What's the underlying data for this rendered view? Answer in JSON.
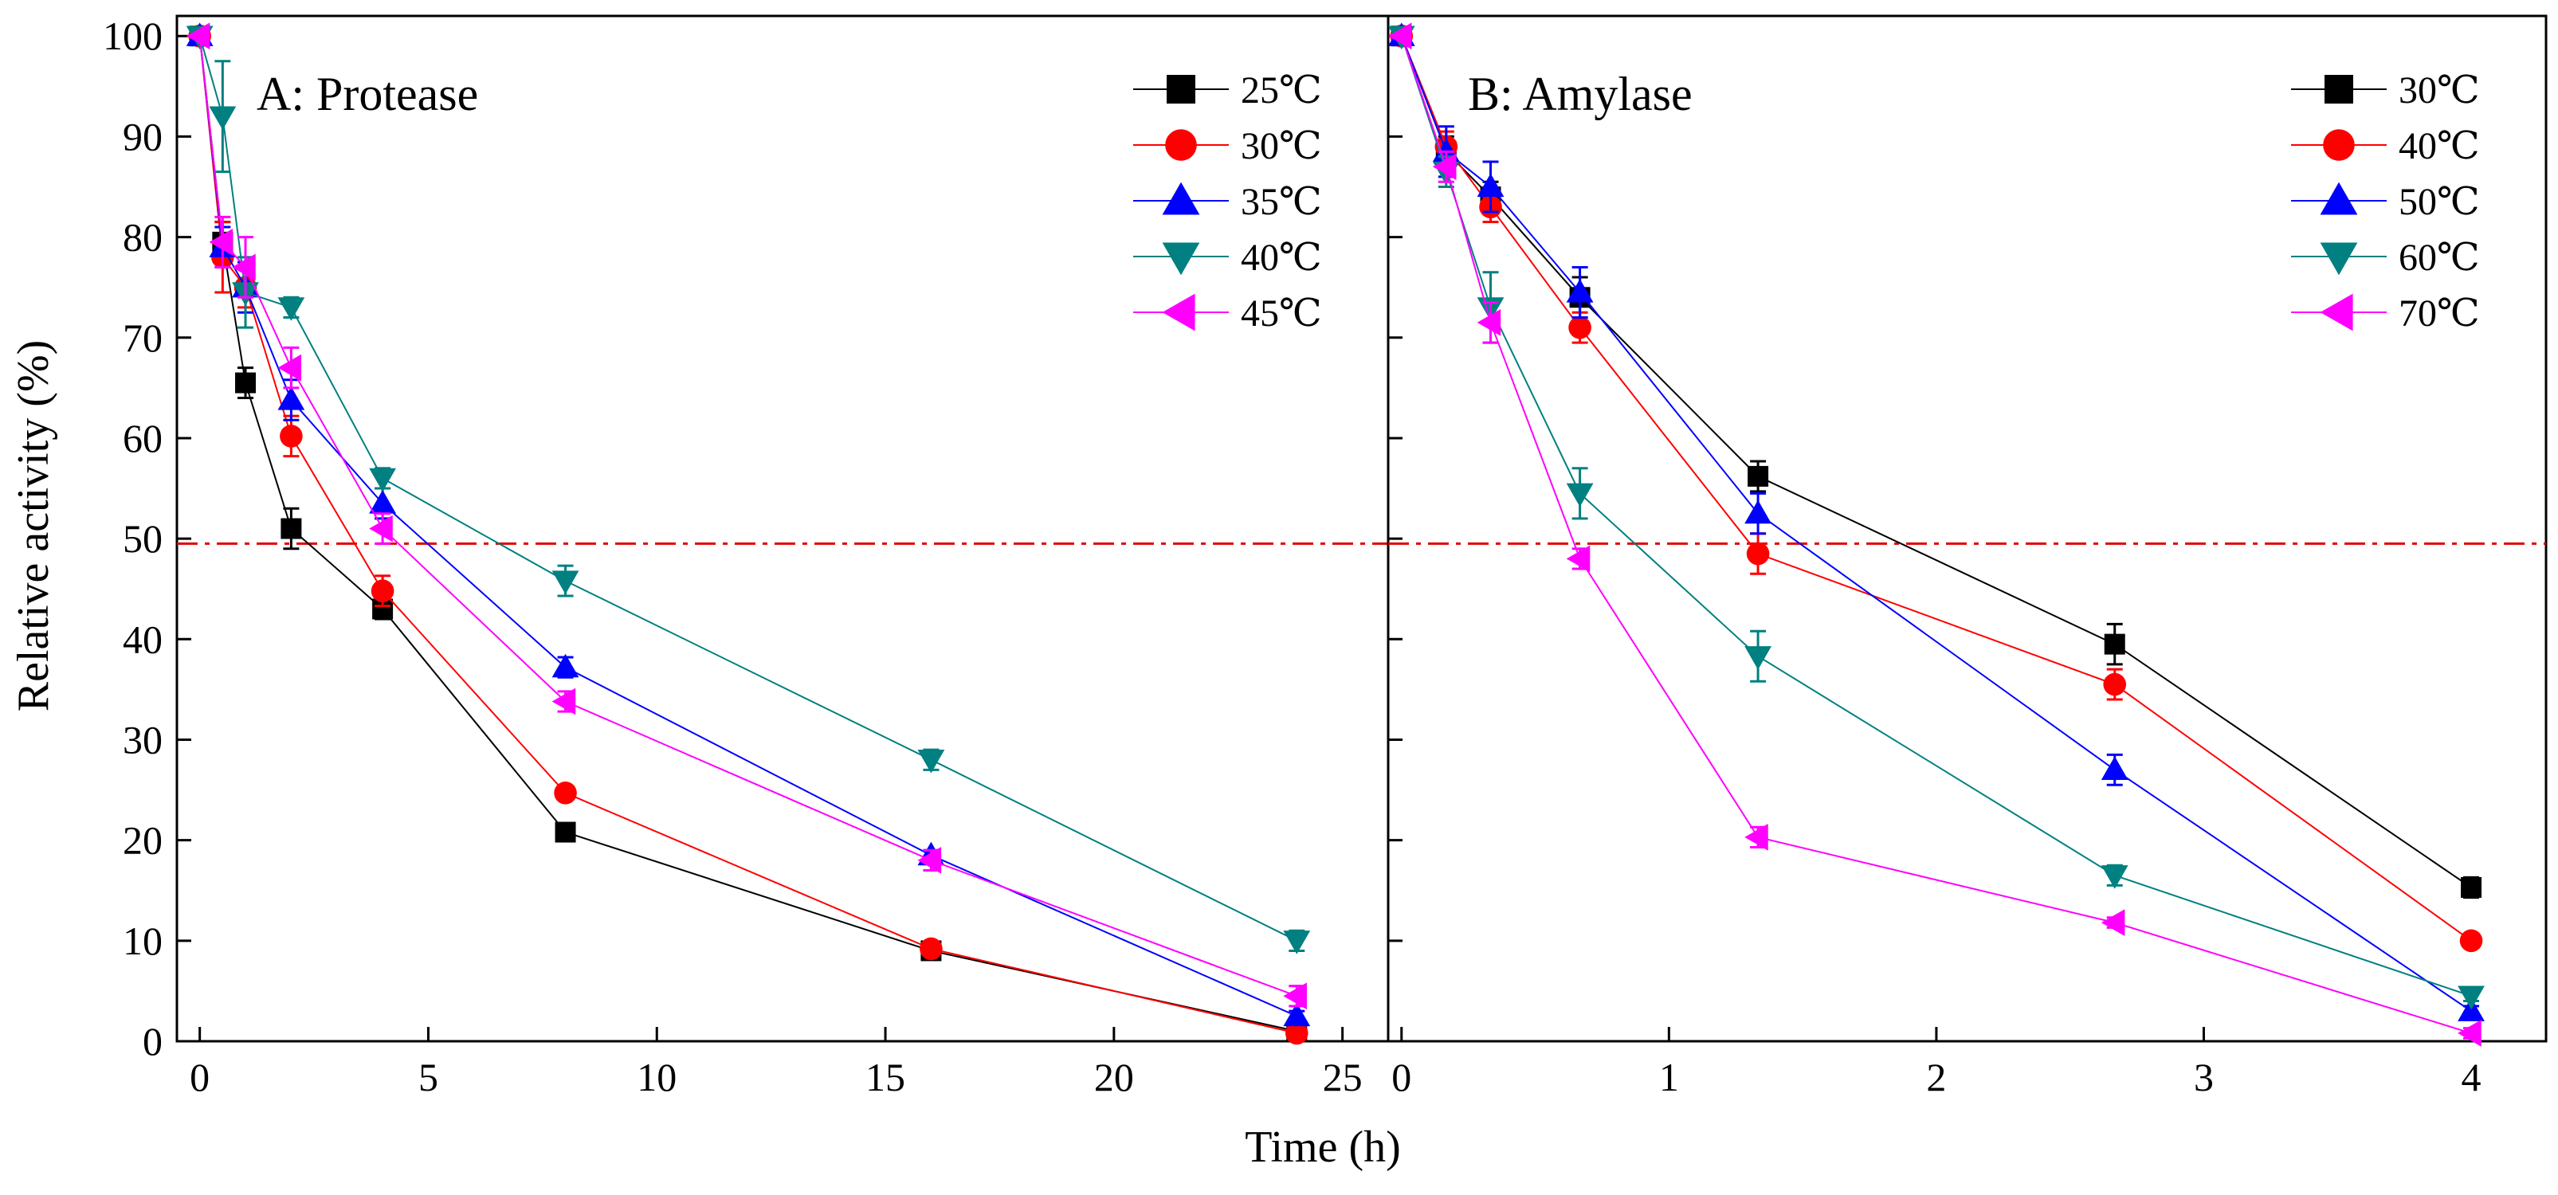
{
  "figure": {
    "ylabel": "Relative activity (%)",
    "xlabel": "Time (h)"
  },
  "colors": {
    "black": "#000000",
    "red": "#ff0000",
    "blue": "#0000ff",
    "teal": "#008080",
    "magenta": "#ff00ff",
    "reference_line": "#e00000"
  },
  "chart_data": [
    {
      "type": "line",
      "title": "A: Protease",
      "xlabel": "Time (h)",
      "ylabel": "Relative activity (%)",
      "xlim": [
        -0.5,
        26
      ],
      "ylim": [
        0,
        102
      ],
      "xticks": [
        0,
        5,
        10,
        15,
        20,
        25
      ],
      "yticks": [
        0,
        10,
        20,
        30,
        40,
        50,
        60,
        70,
        80,
        90,
        100
      ],
      "reference_line": 49.5,
      "legend_position": "top-right",
      "series": [
        {
          "name": "25℃",
          "color": "#000000",
          "marker": "square",
          "x": [
            0,
            0.5,
            1,
            2,
            4,
            8,
            16,
            24
          ],
          "y": [
            100,
            79.5,
            65.5,
            51,
            43,
            20.8,
            9,
            1
          ],
          "err": [
            0,
            2,
            1.5,
            2,
            1,
            0.5,
            0.5,
            0.5
          ]
        },
        {
          "name": "30℃",
          "color": "#ff0000",
          "marker": "circle",
          "x": [
            0,
            0.5,
            1,
            2,
            4,
            8,
            16,
            24
          ],
          "y": [
            100,
            78,
            75,
            60.2,
            44.8,
            24.7,
            9.2,
            0.8
          ],
          "err": [
            0,
            3.5,
            2,
            2,
            1.5,
            0.5,
            0.5,
            0.5
          ]
        },
        {
          "name": "35℃",
          "color": "#0000ff",
          "marker": "triangle-up",
          "x": [
            0,
            0.5,
            1,
            2,
            4,
            8,
            16,
            24
          ],
          "y": [
            100,
            79,
            75,
            63.8,
            53.5,
            37.2,
            18.5,
            2.5
          ],
          "err": [
            0,
            2,
            2.5,
            2,
            1.5,
            1,
            0.5,
            0.5
          ]
        },
        {
          "name": "40℃",
          "color": "#008080",
          "marker": "triangle-down",
          "x": [
            0,
            0.5,
            1,
            2,
            4,
            8,
            16,
            24
          ],
          "y": [
            100,
            92,
            74.5,
            73,
            56,
            45.8,
            28,
            10
          ],
          "err": [
            0,
            5.5,
            3.5,
            1,
            1,
            1.5,
            1,
            1
          ]
        },
        {
          "name": "45℃",
          "color": "#ff00ff",
          "marker": "triangle-left",
          "x": [
            0,
            0.5,
            1,
            2,
            4,
            8,
            16,
            24
          ],
          "y": [
            100,
            79.5,
            77,
            67,
            51,
            33.8,
            18,
            4.5
          ],
          "err": [
            0,
            2.5,
            3,
            2,
            1.5,
            1,
            1,
            1
          ]
        }
      ]
    },
    {
      "type": "line",
      "title": "B: Amylase",
      "xlabel": "Time (h)",
      "ylabel": "",
      "xlim": [
        -0.05,
        4.28
      ],
      "ylim": [
        0,
        102
      ],
      "xticks": [
        0,
        1,
        2,
        3,
        4
      ],
      "yticks": [
        0,
        10,
        20,
        30,
        40,
        50,
        60,
        70,
        80,
        90,
        100
      ],
      "reference_line": 49.5,
      "legend_position": "top-right",
      "series": [
        {
          "name": "30℃",
          "color": "#000000",
          "marker": "square",
          "x": [
            0,
            0.167,
            0.333,
            0.667,
            1.333,
            2.667,
            4
          ],
          "y": [
            100,
            88.5,
            84,
            74,
            56.2,
            39.5,
            15.3
          ],
          "err": [
            0,
            1.5,
            1.5,
            2,
            1.5,
            2,
            1
          ]
        },
        {
          "name": "40℃",
          "color": "#ff0000",
          "marker": "circle",
          "x": [
            0,
            0.167,
            0.333,
            0.667,
            1.333,
            2.667,
            4
          ],
          "y": [
            100,
            89,
            83,
            71,
            48.5,
            35.5,
            10
          ],
          "err": [
            0,
            1.5,
            1.5,
            1.5,
            2,
            1.5,
            0.5
          ]
        },
        {
          "name": "50℃",
          "color": "#0000ff",
          "marker": "triangle-up",
          "x": [
            0,
            0.167,
            0.333,
            0.667,
            1.333,
            2.667,
            4
          ],
          "y": [
            100,
            88.5,
            85,
            74.5,
            52.5,
            27,
            3
          ],
          "err": [
            0,
            2.5,
            2.5,
            2.5,
            2,
            1.5,
            0.5
          ]
        },
        {
          "name": "60℃",
          "color": "#008080",
          "marker": "triangle-down",
          "x": [
            0,
            0.167,
            0.333,
            0.667,
            1.333,
            2.667,
            4
          ],
          "y": [
            100,
            86.5,
            73,
            54.5,
            38.3,
            16.5,
            4.5
          ],
          "err": [
            0,
            1.5,
            3.5,
            2.5,
            2.5,
            1,
            0.5
          ]
        },
        {
          "name": "70℃",
          "color": "#ff00ff",
          "marker": "triangle-left",
          "x": [
            0,
            0.167,
            0.333,
            0.667,
            1.333,
            2.667,
            4
          ],
          "y": [
            100,
            87,
            71.5,
            48,
            20.3,
            11.8,
            0.8
          ],
          "err": [
            0,
            1.5,
            2,
            1,
            1,
            0.5,
            0.5
          ]
        }
      ]
    }
  ]
}
